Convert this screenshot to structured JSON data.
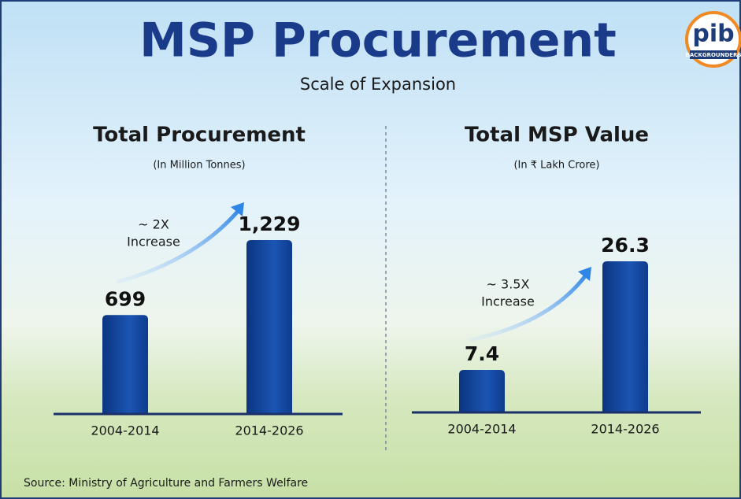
{
  "title": "MSP Procurement",
  "subtitle": "Scale of Expansion",
  "source": "Source: Ministry of Agriculture and Farmers Welfare",
  "logo": {
    "text": "pib",
    "caption": "BACKGROUNDERS"
  },
  "chart_data": [
    {
      "type": "bar",
      "title": "Total Procurement",
      "subtitle": "(In Million Tonnes)",
      "categories": [
        "2004-2014",
        "2014-2026"
      ],
      "values": [
        699,
        1229
      ],
      "value_labels": [
        "699",
        "1,229"
      ],
      "color": "#0f3f94",
      "annotation": [
        "~ 2X",
        "Increase"
      ]
    },
    {
      "type": "bar",
      "title": "Total MSP Value",
      "subtitle": "(In ₹ Lakh Crore)",
      "categories": [
        "2004-2014",
        "2014-2026"
      ],
      "values": [
        7.4,
        26.3
      ],
      "value_labels": [
        "7.4",
        "26.3"
      ],
      "color": "#0f3f94",
      "annotation": [
        "~ 3.5X",
        "Increase"
      ]
    }
  ]
}
